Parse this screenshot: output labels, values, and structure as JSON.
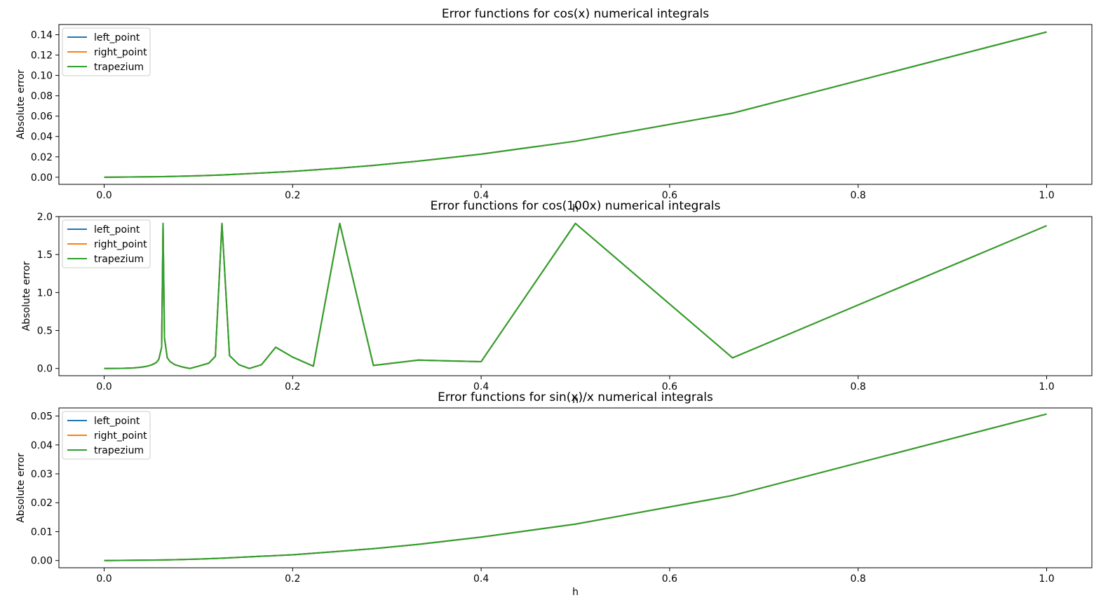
{
  "colors": {
    "left_point": "#1f77b4",
    "right_point": "#ff7f0e",
    "trapezium": "#2ca02c"
  },
  "chart_data": [
    {
      "type": "line",
      "title": "Error functions for cos(x) numerical integrals",
      "xlabel": "h",
      "ylabel": "Absolute error",
      "xlim": [
        -0.048,
        1.048
      ],
      "ylim": [
        -0.007,
        0.15
      ],
      "xticks": [
        0.0,
        0.2,
        0.4,
        0.6,
        0.8,
        1.0
      ],
      "xtick_labels": [
        "0.0",
        "0.2",
        "0.4",
        "0.6",
        "0.8",
        "1.0"
      ],
      "yticks": [
        0.0,
        0.02,
        0.04,
        0.06,
        0.08,
        0.1,
        0.12,
        0.14
      ],
      "ytick_labels": [
        "0.00",
        "0.02",
        "0.04",
        "0.06",
        "0.08",
        "0.10",
        "0.12",
        "0.14"
      ],
      "legend_position": "top-left",
      "x": [
        0.0,
        0.0625,
        0.1,
        0.125,
        0.2,
        0.25,
        0.2857,
        0.3333,
        0.4,
        0.5,
        0.6667,
        1.0
      ],
      "series": [
        {
          "name": "left_point",
          "color_key": "left_point",
          "y": [
            0.0,
            0.0006,
            0.0014,
            0.0022,
            0.0057,
            0.0089,
            0.0116,
            0.0158,
            0.0227,
            0.0354,
            0.0629,
            0.1427
          ]
        },
        {
          "name": "right_point",
          "color_key": "right_point",
          "y": [
            0.0,
            0.0006,
            0.0014,
            0.0022,
            0.0057,
            0.0089,
            0.0116,
            0.0158,
            0.0227,
            0.0354,
            0.0629,
            0.1427
          ]
        },
        {
          "name": "trapezium",
          "color_key": "trapezium",
          "y": [
            0.0,
            0.0006,
            0.0014,
            0.0022,
            0.0057,
            0.0089,
            0.0116,
            0.0158,
            0.0227,
            0.0354,
            0.0629,
            0.1427
          ]
        }
      ]
    },
    {
      "type": "line",
      "title": "Error functions for cos(100x) numerical integrals",
      "xlabel": "h",
      "ylabel": "Absolute error",
      "xlim": [
        -0.048,
        1.048
      ],
      "ylim": [
        -0.095,
        2.0
      ],
      "xticks": [
        0.0,
        0.2,
        0.4,
        0.6,
        0.8,
        1.0
      ],
      "xtick_labels": [
        "0.0",
        "0.2",
        "0.4",
        "0.6",
        "0.8",
        "1.0"
      ],
      "yticks": [
        0.0,
        0.5,
        1.0,
        1.5,
        2.0
      ],
      "ytick_labels": [
        "0.0",
        "0.5",
        "1.0",
        "1.5",
        "2.0"
      ],
      "legend_position": "top-left",
      "x": [
        0.0,
        0.02,
        0.03,
        0.04,
        0.045,
        0.05,
        0.055,
        0.058,
        0.061,
        0.0625,
        0.064,
        0.067,
        0.07,
        0.075,
        0.083,
        0.091,
        0.1,
        0.111,
        0.118,
        0.125,
        0.133,
        0.143,
        0.154,
        0.167,
        0.182,
        0.2,
        0.222,
        0.25,
        0.2857,
        0.3333,
        0.4,
        0.5,
        0.6667,
        1.0
      ],
      "series": [
        {
          "name": "left_point",
          "color_key": "left_point",
          "y": [
            0.0,
            0.002,
            0.006,
            0.018,
            0.028,
            0.045,
            0.075,
            0.12,
            0.28,
            1.91,
            0.4,
            0.14,
            0.09,
            0.05,
            0.02,
            0.0,
            0.03,
            0.07,
            0.16,
            1.91,
            0.17,
            0.05,
            0.0,
            0.05,
            0.28,
            0.15,
            0.03,
            1.91,
            0.04,
            0.11,
            0.09,
            1.91,
            0.14,
            1.88
          ]
        },
        {
          "name": "right_point",
          "color_key": "right_point",
          "y": [
            0.0,
            0.002,
            0.006,
            0.018,
            0.028,
            0.045,
            0.075,
            0.12,
            0.28,
            1.91,
            0.4,
            0.14,
            0.09,
            0.05,
            0.02,
            0.0,
            0.03,
            0.07,
            0.16,
            1.91,
            0.17,
            0.05,
            0.0,
            0.05,
            0.28,
            0.15,
            0.03,
            1.91,
            0.04,
            0.11,
            0.09,
            1.91,
            0.14,
            1.88
          ]
        },
        {
          "name": "trapezium",
          "color_key": "trapezium",
          "y": [
            0.0,
            0.002,
            0.006,
            0.018,
            0.028,
            0.045,
            0.075,
            0.12,
            0.28,
            1.91,
            0.4,
            0.14,
            0.09,
            0.05,
            0.02,
            0.0,
            0.03,
            0.07,
            0.16,
            1.91,
            0.17,
            0.05,
            0.0,
            0.05,
            0.28,
            0.15,
            0.03,
            1.91,
            0.04,
            0.11,
            0.09,
            1.91,
            0.14,
            1.88
          ]
        }
      ]
    },
    {
      "type": "line",
      "title": "Error functions for sin(x)/x numerical integrals",
      "xlabel": "h",
      "ylabel": "Absolute error",
      "xlim": [
        -0.048,
        1.048
      ],
      "ylim": [
        -0.0025,
        0.0528
      ],
      "xticks": [
        0.0,
        0.2,
        0.4,
        0.6,
        0.8,
        1.0
      ],
      "xtick_labels": [
        "0.0",
        "0.2",
        "0.4",
        "0.6",
        "0.8",
        "1.0"
      ],
      "yticks": [
        0.0,
        0.01,
        0.02,
        0.03,
        0.04,
        0.05
      ],
      "ytick_labels": [
        "0.00",
        "0.01",
        "0.02",
        "0.03",
        "0.04",
        "0.05"
      ],
      "legend_position": "top-left",
      "x": [
        0.0,
        0.0625,
        0.1,
        0.125,
        0.2,
        0.25,
        0.2857,
        0.3333,
        0.4,
        0.5,
        0.6667,
        1.0
      ],
      "series": [
        {
          "name": "left_point",
          "color_key": "left_point",
          "y": [
            0.0,
            0.0002,
            0.0005,
            0.0008,
            0.002,
            0.0032,
            0.0041,
            0.0056,
            0.0081,
            0.0126,
            0.0225,
            0.0507
          ]
        },
        {
          "name": "right_point",
          "color_key": "right_point",
          "y": [
            0.0,
            0.0002,
            0.0005,
            0.0008,
            0.002,
            0.0032,
            0.0041,
            0.0056,
            0.0081,
            0.0126,
            0.0225,
            0.0507
          ]
        },
        {
          "name": "trapezium",
          "color_key": "trapezium",
          "y": [
            0.0,
            0.0002,
            0.0005,
            0.0008,
            0.002,
            0.0032,
            0.0041,
            0.0056,
            0.0081,
            0.0126,
            0.0225,
            0.0507
          ]
        }
      ]
    }
  ]
}
